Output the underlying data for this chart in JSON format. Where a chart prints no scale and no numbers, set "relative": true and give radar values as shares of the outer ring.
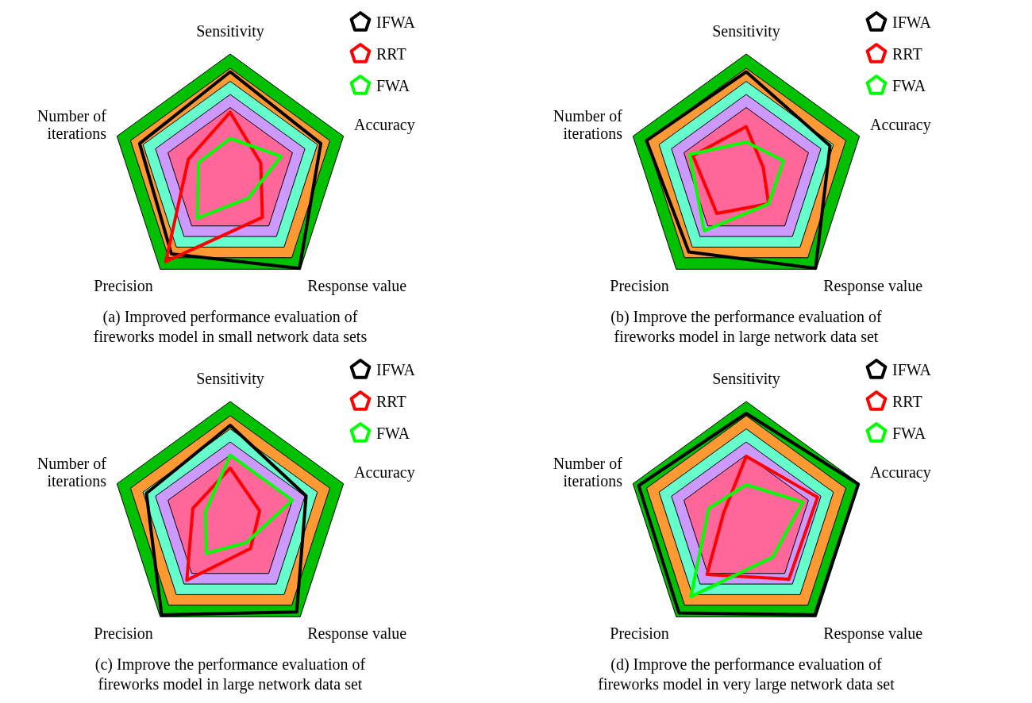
{
  "chart_data": [
    {
      "type": "radar",
      "title": "(a) Improved performance evaluation of fireworks model in small network data sets",
      "categories": [
        "Sensitivity",
        "Accuracy",
        "Response value",
        "Precision",
        "Number of iterations"
      ],
      "relative": true,
      "grid": true,
      "legend": "top right",
      "series": [
        {
          "name": "IFWA",
          "color": "#000000",
          "values": [
            0.85,
            0.8,
            0.99,
            0.84,
            0.8
          ]
        },
        {
          "name": "RRT",
          "color": "#ff0000",
          "values": [
            0.51,
            0.27,
            0.46,
            0.92,
            0.37
          ]
        },
        {
          "name": "FWA",
          "color": "#00ff00",
          "values": [
            0.29,
            0.45,
            0.26,
            0.47,
            0.28
          ]
        }
      ]
    },
    {
      "type": "radar",
      "title": "(b) Improve the performance evaluation of fireworks model in large network data set",
      "categories": [
        "Sensitivity",
        "Accuracy",
        "Response value",
        "Precision",
        "Number of iterations"
      ],
      "relative": true,
      "grid": true,
      "legend": "top right",
      "series": [
        {
          "name": "IFWA",
          "color": "#000000",
          "values": [
            0.85,
            0.74,
            0.99,
            0.82,
            0.88
          ]
        },
        {
          "name": "RRT",
          "color": "#ff0000",
          "values": [
            0.39,
            0.15,
            0.32,
            0.42,
            0.47
          ]
        },
        {
          "name": "FWA",
          "color": "#00ff00",
          "values": [
            0.26,
            0.33,
            0.32,
            0.6,
            0.5
          ]
        }
      ]
    },
    {
      "type": "radar",
      "title": "(c) Improve the performance evaluation of fireworks model in large network data set",
      "categories": [
        "Sensitivity",
        "Accuracy",
        "Response value",
        "Precision",
        "Number of iterations"
      ],
      "relative": true,
      "grid": true,
      "legend": "top right",
      "series": [
        {
          "name": "IFWA",
          "color": "#000000",
          "values": [
            0.8,
            0.67,
            0.95,
            0.98,
            0.74
          ]
        },
        {
          "name": "RRT",
          "color": "#ff0000",
          "values": [
            0.44,
            0.26,
            0.29,
            0.62,
            0.33
          ]
        },
        {
          "name": "FWA",
          "color": "#00ff00",
          "values": [
            0.55,
            0.55,
            0.23,
            0.34,
            0.22
          ]
        }
      ]
    },
    {
      "type": "radar",
      "title": "(d) Improve the performance evaluation of fireworks model in very large network data set",
      "categories": [
        "Sensitivity",
        "Accuracy",
        "Response value",
        "Precision",
        "Number of iterations"
      ],
      "relative": true,
      "grid": true,
      "legend": "top right",
      "series": [
        {
          "name": "IFWA",
          "color": "#000000",
          "values": [
            0.9,
            0.99,
            0.98,
            0.96,
            0.95
          ]
        },
        {
          "name": "RRT",
          "color": "#ff0000",
          "values": [
            0.54,
            0.63,
            0.61,
            0.56,
            0.2
          ]
        },
        {
          "name": "FWA",
          "color": "#00ff00",
          "values": [
            0.3,
            0.5,
            0.38,
            0.79,
            0.33
          ]
        }
      ]
    }
  ]
}
